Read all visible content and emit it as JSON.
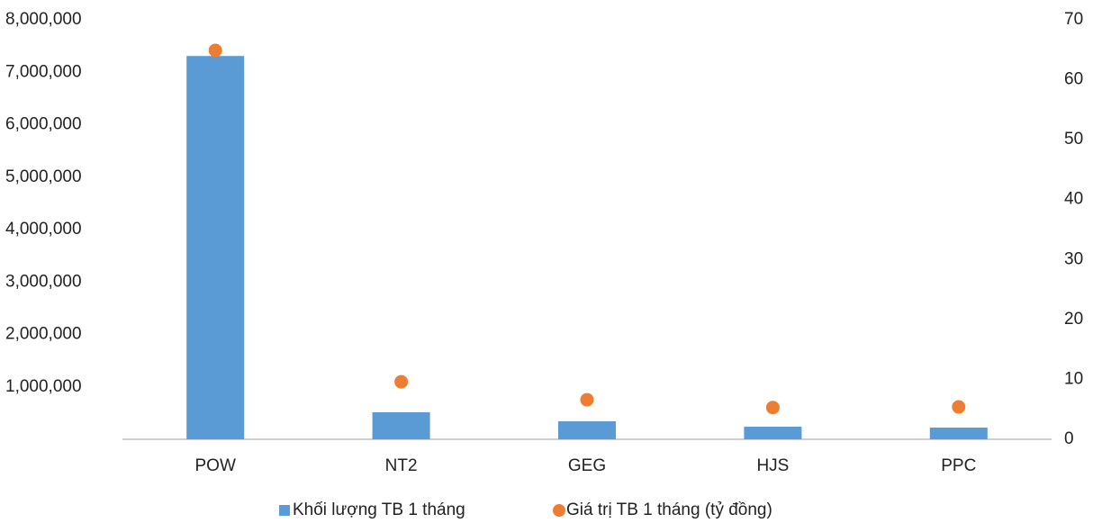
{
  "chart_data": {
    "type": "bar",
    "categories": [
      "POW",
      "NT2",
      "GEG",
      "HJS",
      "PPC"
    ],
    "series": [
      {
        "name": "Khối lượng TB 1 tháng",
        "type": "bar",
        "color": "#5b9bd5",
        "values": [
          7310000,
          515000,
          343000,
          240000,
          223000
        ]
      },
      {
        "name": "Giá trị TB 1 tháng (tỷ đồng)",
        "type": "scatter",
        "axis": "y2",
        "color": "#ed7d31",
        "values": [
          64.9,
          9.6,
          6.6,
          5.3,
          5.4
        ]
      }
    ],
    "ylim": [
      0,
      8000000
    ],
    "yticks": [
      {
        "value": 1000000,
        "label": "1,000,000"
      },
      {
        "value": 2000000,
        "label": "2,000,000"
      },
      {
        "value": 3000000,
        "label": "3,000,000"
      },
      {
        "value": 4000000,
        "label": "4,000,000"
      },
      {
        "value": 5000000,
        "label": "5,000,000"
      },
      {
        "value": 6000000,
        "label": "6,000,000"
      },
      {
        "value": 7000000,
        "label": "7,000,000"
      },
      {
        "value": 8000000,
        "label": "8,000,000"
      }
    ],
    "y2lim": [
      0,
      70
    ],
    "y2ticks": [
      0,
      10,
      20,
      30,
      40,
      50,
      60,
      70
    ],
    "grid": false,
    "legend": "bottom"
  }
}
